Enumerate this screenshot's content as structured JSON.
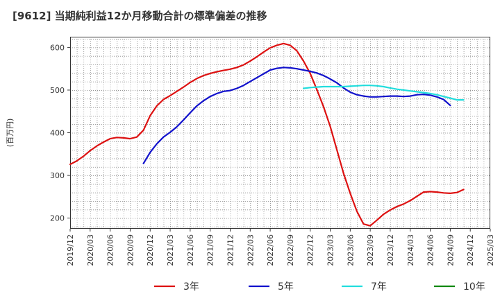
{
  "chart_data": {
    "type": "line",
    "title": "[9612]  当期純利益12か月移動合計の標準偏差の推移",
    "ylabel": "(百万円)",
    "xlabel": "",
    "ylim": [
      175,
      625
    ],
    "yticks": [
      200,
      300,
      400,
      500,
      600
    ],
    "x_start": "2019-12",
    "x_end": "2025-03",
    "xticks": [
      "2019/12",
      "2020/03",
      "2020/06",
      "2020/09",
      "2020/12",
      "2021/03",
      "2021/06",
      "2021/09",
      "2021/12",
      "2022/03",
      "2022/06",
      "2022/09",
      "2022/12",
      "2023/03",
      "2023/06",
      "2023/09",
      "2023/12",
      "2024/03",
      "2024/06",
      "2024/09",
      "2024/12",
      "2025/03"
    ],
    "grid": true,
    "legend_position": "bottom",
    "series": [
      {
        "name": "3年",
        "color": "#dd1111",
        "start": "2019-12",
        "values": [
          326,
          334,
          345,
          358,
          369,
          378,
          386,
          389,
          388,
          386,
          390,
          406,
          440,
          463,
          478,
          487,
          497,
          507,
          518,
          527,
          534,
          539,
          543,
          546,
          549,
          553,
          559,
          568,
          578,
          589,
          599,
          605,
          609,
          605,
          592,
          568,
          539,
          501,
          461,
          415,
          360,
          305,
          258,
          216,
          186,
          182,
          195,
          209,
          219,
          227,
          233,
          241,
          251,
          261,
          262,
          261,
          259,
          258,
          260,
          267
        ]
      },
      {
        "name": "5年",
        "color": "#1111cc",
        "start": "2020-11",
        "values": [
          328,
          354,
          374,
          390,
          401,
          414,
          430,
          447,
          463,
          475,
          485,
          492,
          497,
          499,
          504,
          511,
          520,
          529,
          538,
          547,
          551,
          553,
          552,
          550,
          547,
          544,
          540,
          534,
          526,
          517,
          505,
          495,
          489,
          486,
          484,
          484,
          485,
          486,
          486,
          485,
          486,
          489,
          490,
          488,
          484,
          478,
          464
        ]
      },
      {
        "name": "7年",
        "color": "#22dddd",
        "start": "2022-11",
        "values": [
          504,
          506,
          507,
          508,
          508,
          508,
          508,
          509,
          510,
          511,
          511,
          510,
          508,
          505,
          502,
          500,
          498,
          496,
          494,
          492,
          489,
          485,
          481,
          477,
          477
        ]
      },
      {
        "name": "10年",
        "color": "#118811",
        "start": "",
        "values": []
      }
    ]
  }
}
